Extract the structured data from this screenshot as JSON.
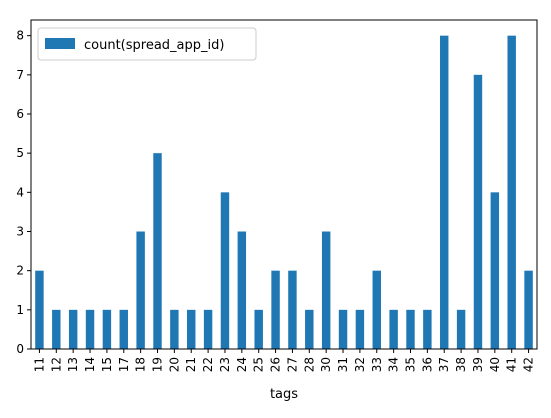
{
  "chart_data": {
    "type": "bar",
    "categories": [
      "11",
      "12",
      "13",
      "14",
      "15",
      "17",
      "18",
      "19",
      "20",
      "21",
      "22",
      "23",
      "24",
      "25",
      "26",
      "27",
      "28",
      "30",
      "31",
      "32",
      "33",
      "34",
      "35",
      "36",
      "37",
      "38",
      "39",
      "40",
      "41",
      "42"
    ],
    "series": [
      {
        "name": "count(spread_app_id)",
        "values": [
          2,
          1,
          1,
          1,
          1,
          1,
          3,
          5,
          1,
          1,
          1,
          4,
          3,
          1,
          2,
          2,
          1,
          3,
          1,
          1,
          2,
          1,
          1,
          1,
          8,
          1,
          7,
          4,
          8,
          2
        ],
        "color": "#1f77b4"
      }
    ],
    "title": "",
    "xlabel": "tags",
    "ylabel": "",
    "ylim": [
      0,
      8.4
    ],
    "yticks": [
      0,
      1,
      2,
      3,
      4,
      5,
      6,
      7,
      8
    ],
    "legend": "upper-left",
    "grid": false
  }
}
